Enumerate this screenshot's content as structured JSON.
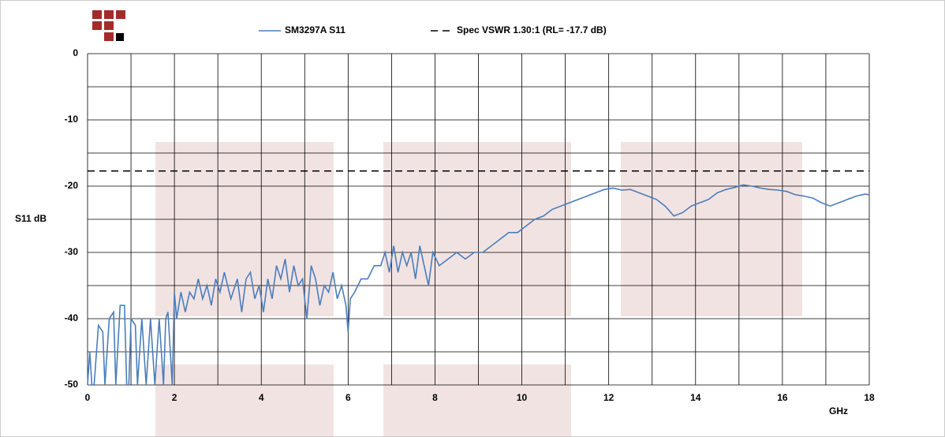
{
  "chart_data": {
    "type": "line",
    "ylabel": "S11 dB",
    "xlabel": "GHz",
    "xlim": [
      0,
      18
    ],
    "xticks": [
      0,
      2,
      4,
      6,
      8,
      10,
      12,
      14,
      16,
      18
    ],
    "xgrid": [
      0,
      1,
      2,
      3,
      4,
      5,
      6,
      7,
      8,
      9,
      10,
      11,
      12,
      13,
      14,
      15,
      16,
      17,
      18
    ],
    "ylim": [
      -50,
      0
    ],
    "yticks": [
      0,
      -10,
      -20,
      -30,
      -40,
      -50
    ],
    "ygrid": [
      0,
      -5,
      -10,
      -15,
      -20,
      -25,
      -30,
      -35,
      -40,
      -45,
      -50
    ],
    "grid": true,
    "series": [
      {
        "name": "SM3297A S11",
        "color": "#4a7ebb",
        "dash": false,
        "x": [
          0,
          0.05,
          0.1,
          0.15,
          0.25,
          0.35,
          0.4,
          0.5,
          0.6,
          0.65,
          0.75,
          0.85,
          0.9,
          0.95,
          1.0,
          1.1,
          1.15,
          1.25,
          1.35,
          1.45,
          1.55,
          1.65,
          1.75,
          1.8,
          1.85,
          1.95,
          2.0,
          2.05,
          2.15,
          2.25,
          2.35,
          2.45,
          2.55,
          2.65,
          2.75,
          2.85,
          2.95,
          3.05,
          3.15,
          3.3,
          3.45,
          3.55,
          3.65,
          3.75,
          3.85,
          3.95,
          4.05,
          4.15,
          4.25,
          4.35,
          4.45,
          4.55,
          4.65,
          4.75,
          4.85,
          4.95,
          5.05,
          5.15,
          5.25,
          5.35,
          5.45,
          5.55,
          5.65,
          5.75,
          5.85,
          5.95,
          6.0,
          6.05,
          6.15,
          6.3,
          6.45,
          6.6,
          6.75,
          6.85,
          6.95,
          7.05,
          7.15,
          7.25,
          7.35,
          7.45,
          7.55,
          7.65,
          7.75,
          7.85,
          7.95,
          8.1,
          8.3,
          8.5,
          8.7,
          8.9,
          9.1,
          9.3,
          9.5,
          9.7,
          9.9,
          10.1,
          10.3,
          10.5,
          10.7,
          10.9,
          11.1,
          11.3,
          11.5,
          11.7,
          11.9,
          12.1,
          12.3,
          12.5,
          12.7,
          12.9,
          13.1,
          13.3,
          13.5,
          13.7,
          13.9,
          14.1,
          14.3,
          14.5,
          14.7,
          14.9,
          15.1,
          15.3,
          15.5,
          15.7,
          15.9,
          16.1,
          16.3,
          16.5,
          16.7,
          16.9,
          17.1,
          17.3,
          17.5,
          17.7,
          17.9,
          18
        ],
        "values": [
          -50,
          -45,
          -50,
          -50,
          -41,
          -42,
          -50,
          -40,
          -39,
          -50,
          -38,
          -38,
          -50,
          -50,
          -40,
          -41,
          -50,
          -40,
          -50,
          -40,
          -50,
          -40,
          -50,
          -40,
          -39,
          -50,
          -36,
          -40,
          -36,
          -39,
          -36,
          -37,
          -34,
          -37,
          -35,
          -38,
          -34,
          -36,
          -33,
          -37,
          -34,
          -39,
          -34,
          -33,
          -37,
          -35,
          -39,
          -34,
          -37,
          -32,
          -34,
          -31,
          -36,
          -32,
          -35,
          -34,
          -40,
          -32,
          -34,
          -38,
          -35,
          -36,
          -33,
          -37,
          -35,
          -38,
          -42,
          -37,
          -36,
          -34,
          -34,
          -32,
          -32,
          -30,
          -33,
          -29,
          -33,
          -30,
          -32,
          -30,
          -34,
          -29,
          -32,
          -35,
          -30,
          -32,
          -31,
          -30,
          -31,
          -30,
          -30,
          -29,
          -28,
          -27,
          -27,
          -26,
          -25,
          -24.5,
          -23.5,
          -23,
          -22.5,
          -22,
          -21.5,
          -21,
          -20.5,
          -20.3,
          -20.6,
          -20.5,
          -21,
          -21.5,
          -22,
          -23,
          -24.5,
          -24,
          -23,
          -22.5,
          -22,
          -21,
          -20.5,
          -20.2,
          -19.8,
          -20,
          -20.3,
          -20.5,
          -20.6,
          -20.8,
          -21.3,
          -21.5,
          -21.8,
          -22.5,
          -23,
          -22.5,
          -22,
          -21.5,
          -21.2,
          -21.3
        ]
      },
      {
        "name": "Spec VSWR 1.30:1 (RL= -17.7 dB)",
        "color": "#000000",
        "dash": true,
        "x": [
          0,
          18
        ],
        "values": [
          -17.7,
          -17.7
        ]
      }
    ]
  }
}
